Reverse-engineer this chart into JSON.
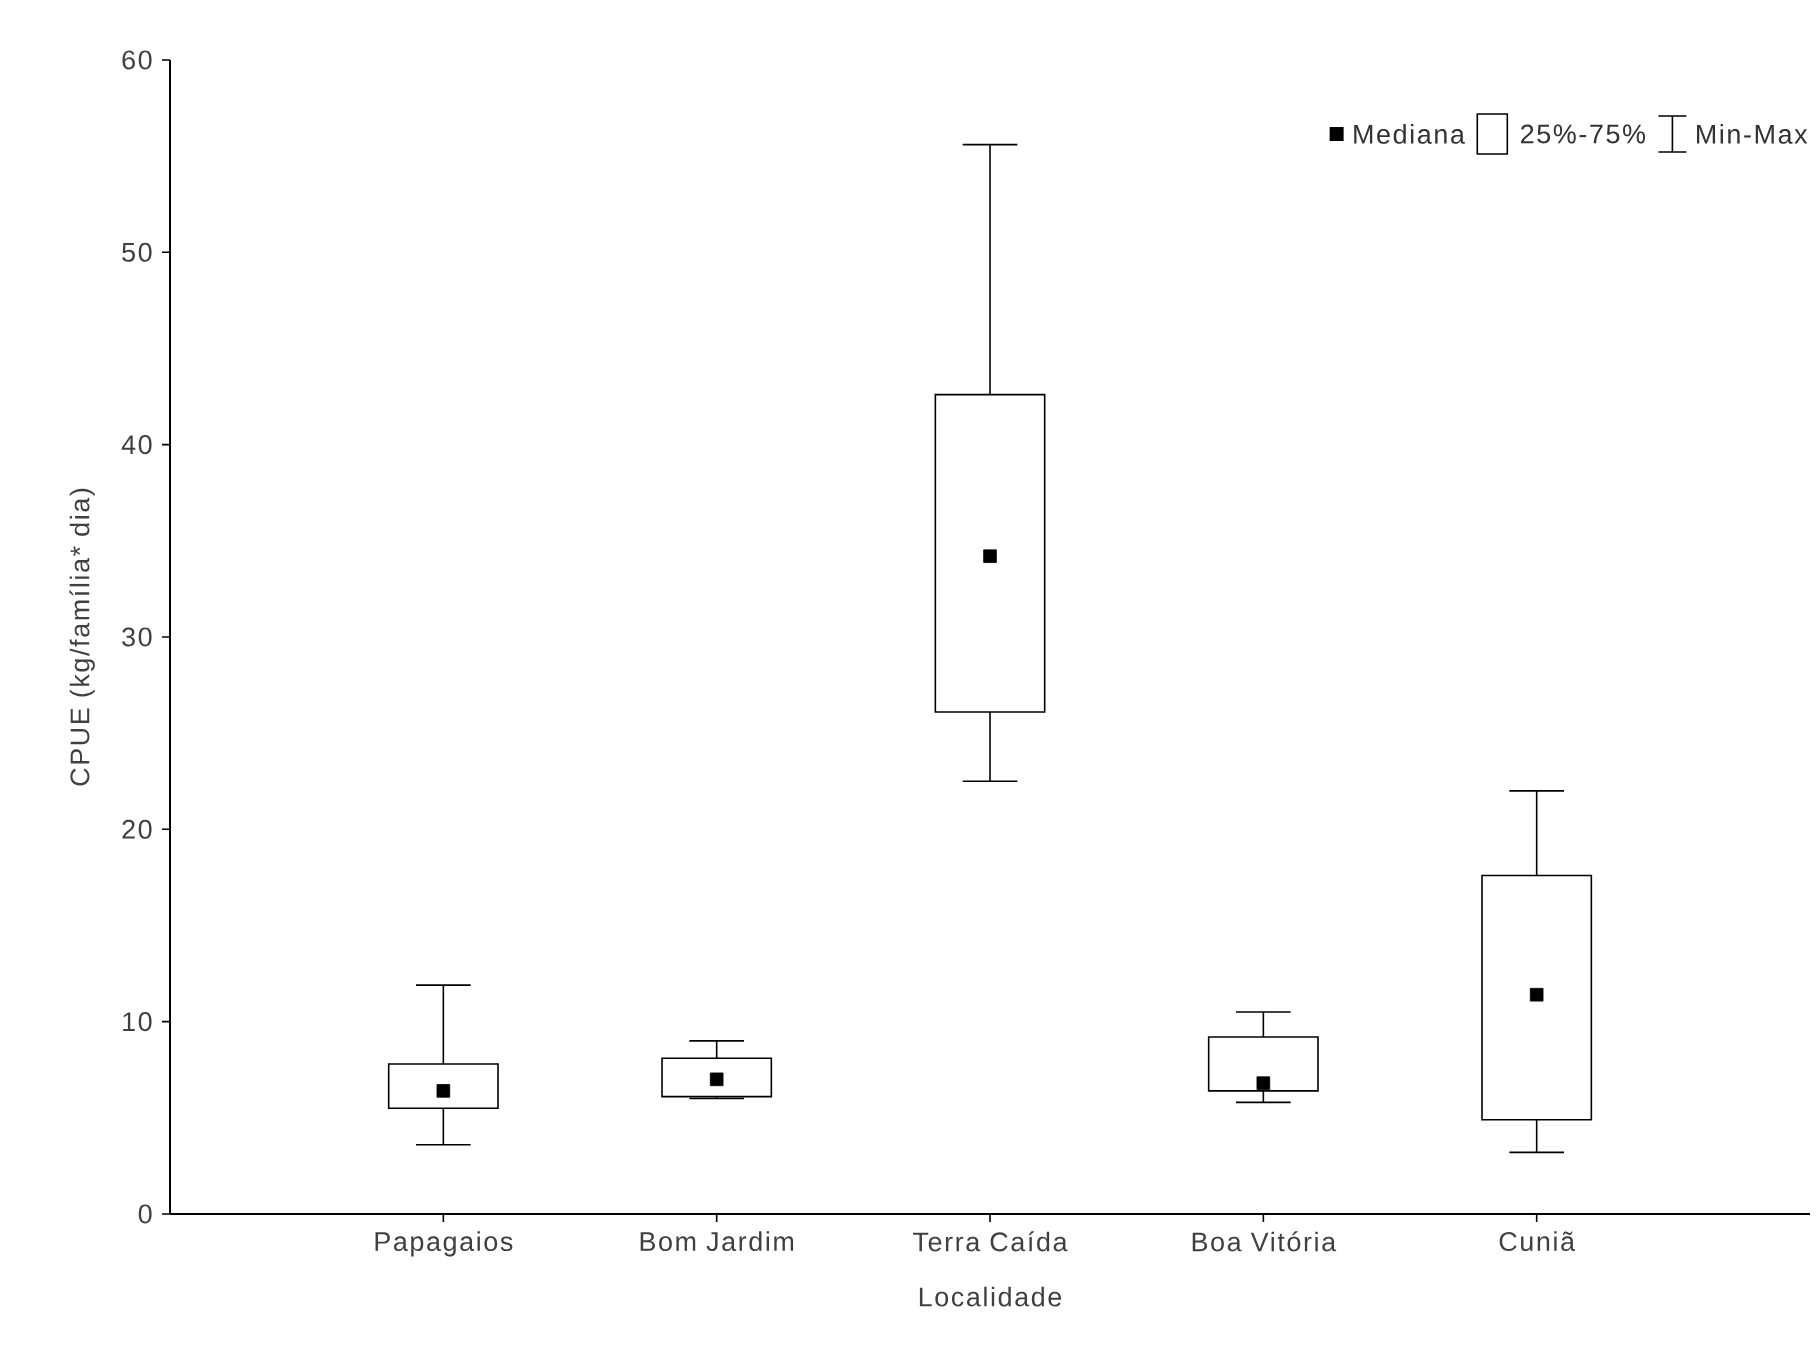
{
  "chart_data": {
    "type": "box",
    "xlabel": "Localidade",
    "ylabel": "CPUE (kg/família* dia)",
    "categories": [
      "Papagaios",
      "Bom Jardim",
      "Terra Caída",
      "Boa Vitória",
      "Cuniã"
    ],
    "boxes": [
      {
        "low": 3.6,
        "q1": 5.5,
        "median": 6.4,
        "q3": 7.8,
        "high": 11.9
      },
      {
        "low": 6.0,
        "q1": 6.1,
        "median": 7.0,
        "q3": 8.1,
        "high": 9.0
      },
      {
        "low": 22.5,
        "q1": 26.1,
        "median": 34.2,
        "q3": 42.6,
        "high": 55.6
      },
      {
        "low": 5.8,
        "q1": 6.4,
        "median": 6.8,
        "q3": 9.2,
        "high": 10.5
      },
      {
        "low": 3.2,
        "q1": 4.9,
        "median": 11.4,
        "q3": 17.6,
        "high": 22.0
      }
    ],
    "ylim": [
      0,
      60
    ],
    "yticks": [
      0,
      10,
      20,
      30,
      40,
      50,
      60
    ],
    "grid": false,
    "marker": "square",
    "annotations": [
      "Mediana",
      "25%-75%",
      "Min-Max"
    ]
  }
}
